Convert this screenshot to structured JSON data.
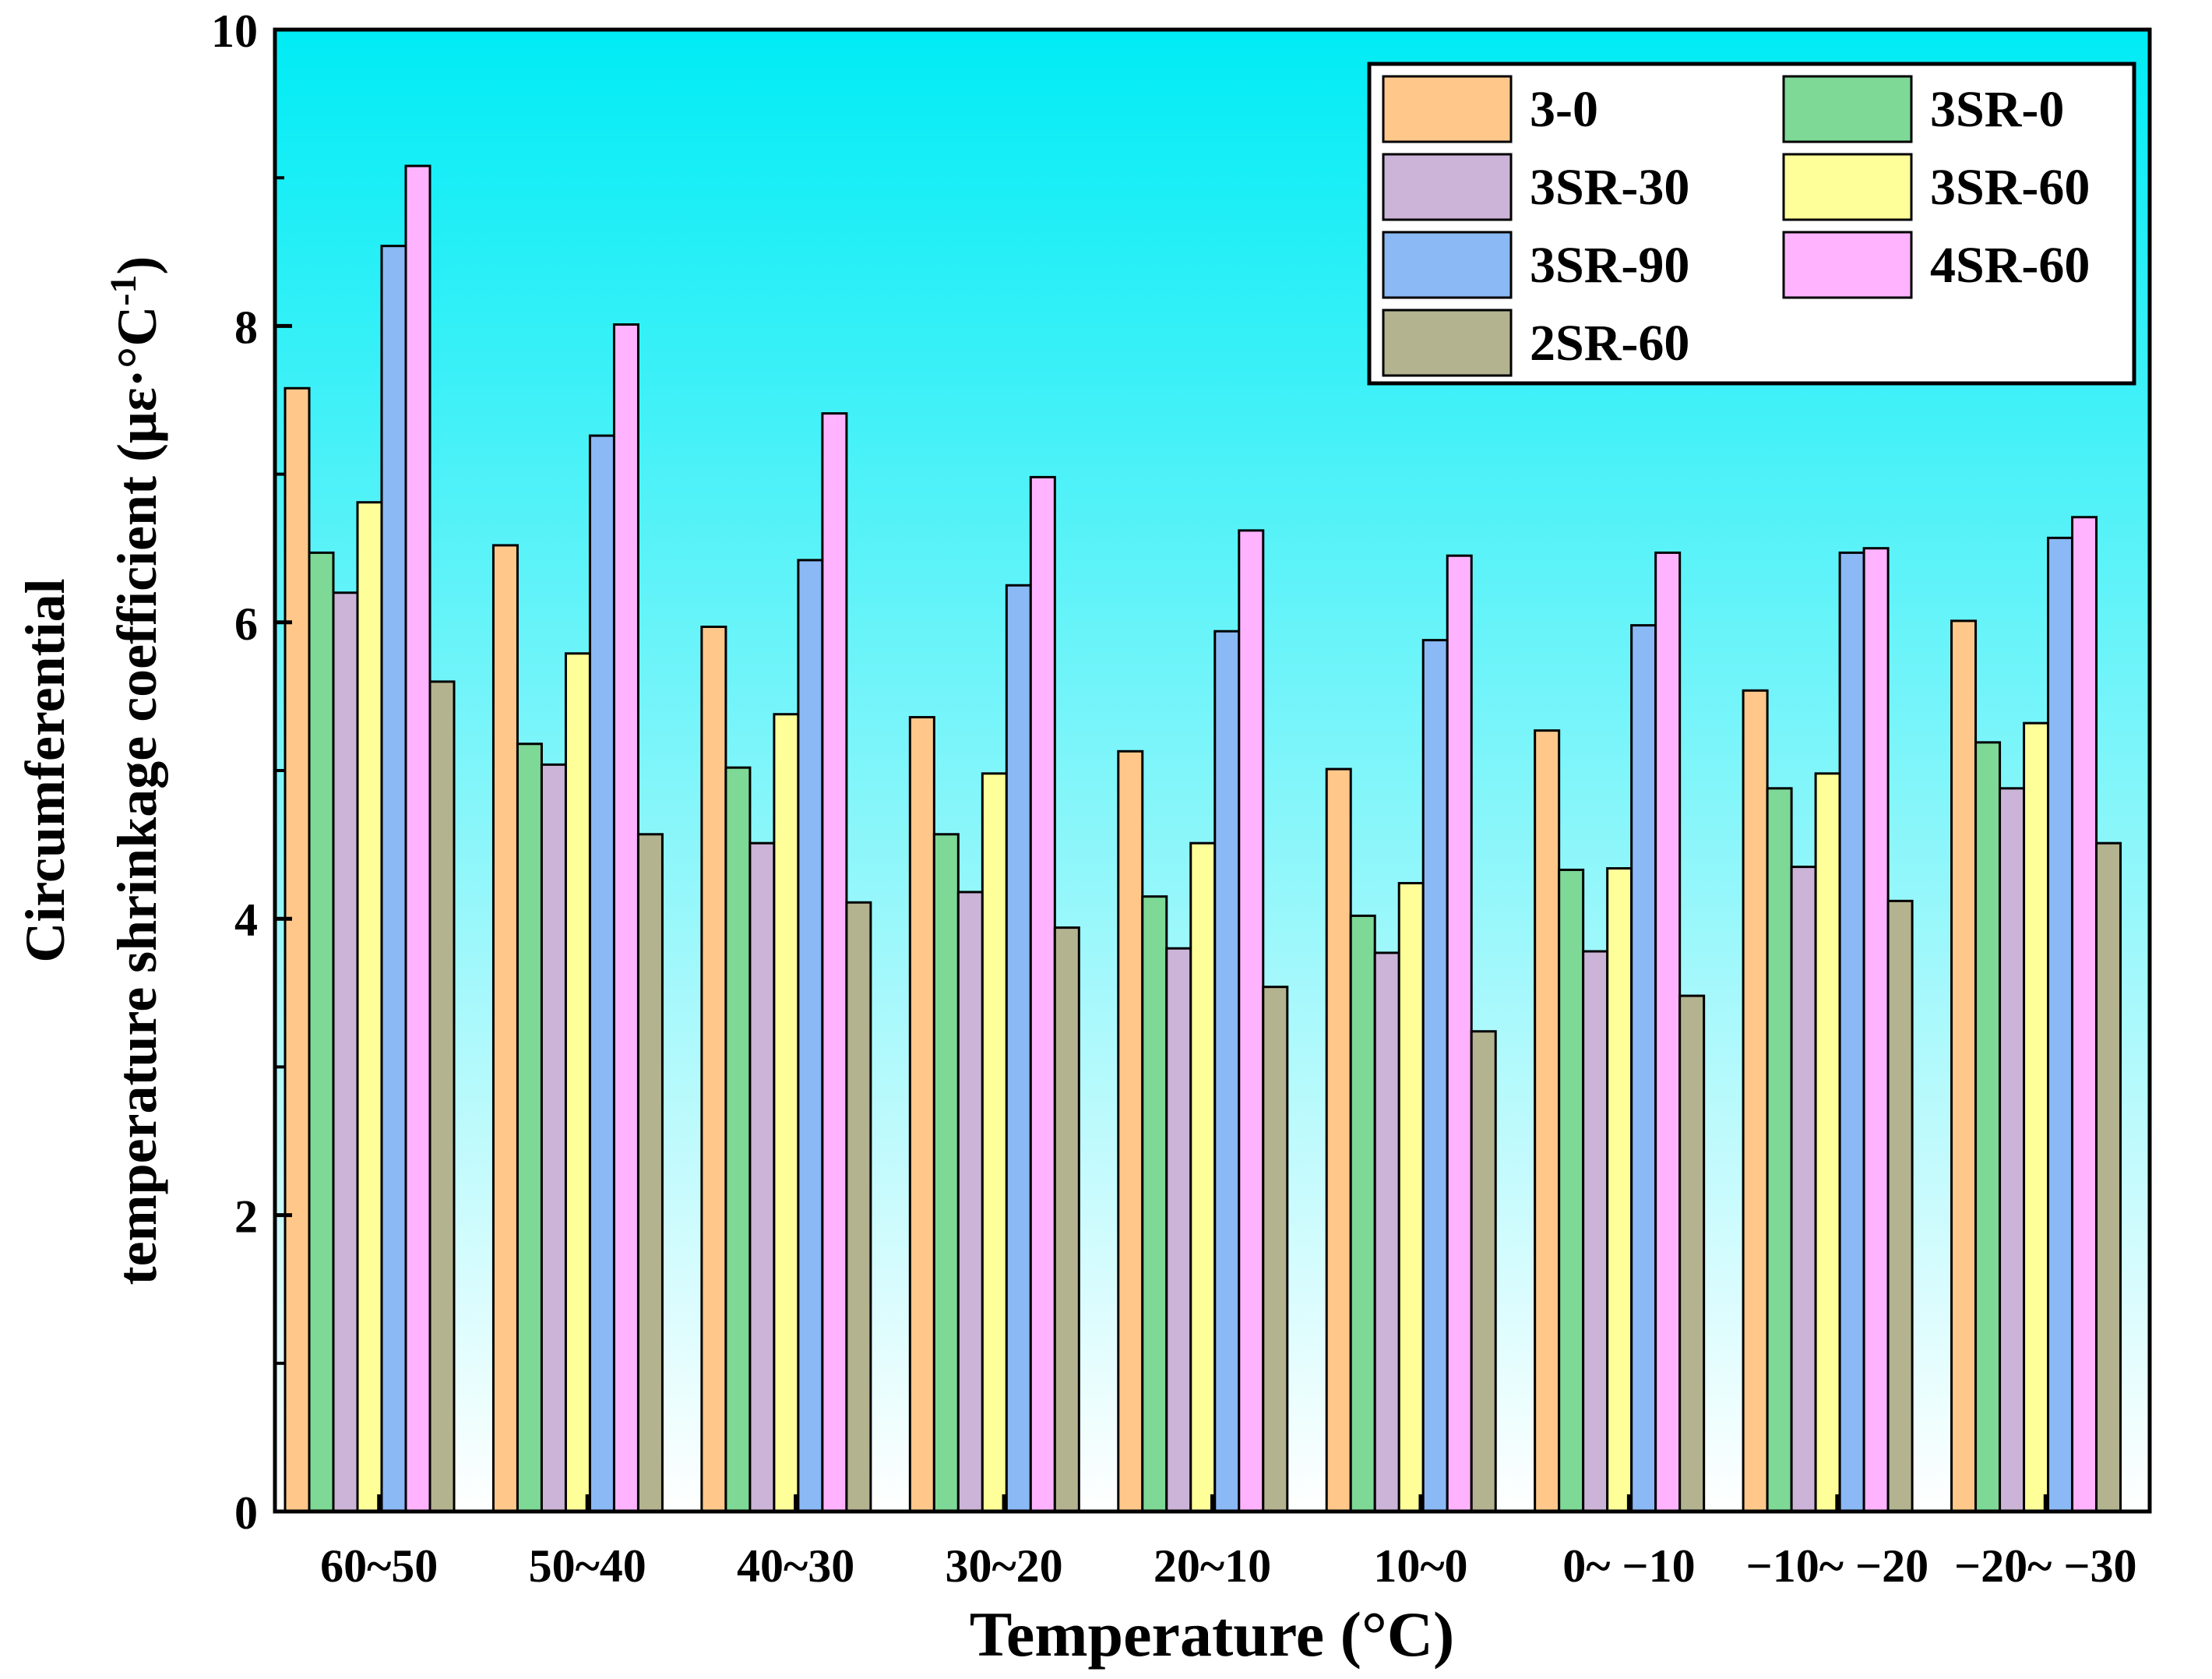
{
  "chart_data": {
    "type": "bar",
    "title": "",
    "xlabel": "Temperature (°C)",
    "ylabel_line1": "Circumferential",
    "ylabel_line2": "temperature shrinkage coefficient (με·°C",
    "ylabel_sup": "-1",
    "ylabel_close": ")",
    "ylim": [
      0,
      10
    ],
    "yticks": [
      "0",
      "2",
      "4",
      "6",
      "8",
      "10"
    ],
    "categories": [
      "60~50",
      "50~40",
      "40~30",
      "30~20",
      "20~10",
      "10~0",
      "0~ −10",
      "−10~ −20",
      "−20~ −30"
    ],
    "legend_position": "top-right",
    "background_gradient": [
      "#00ecf5",
      "#ffffff"
    ],
    "series": [
      {
        "name": "3-0",
        "color": "#ffc88a",
        "values": [
          7.58,
          6.52,
          5.97,
          5.36,
          5.13,
          5.01,
          5.27,
          5.54,
          6.01
        ]
      },
      {
        "name": "3SR-0",
        "color": "#7dd995",
        "values": [
          6.47,
          5.18,
          5.02,
          4.57,
          4.15,
          4.02,
          4.33,
          4.88,
          5.19
        ]
      },
      {
        "name": "3SR-30",
        "color": "#ccb4d8",
        "values": [
          6.2,
          5.04,
          4.51,
          4.18,
          3.8,
          3.77,
          3.78,
          4.35,
          4.88
        ]
      },
      {
        "name": "3SR-60",
        "color": "#ffff99",
        "values": [
          6.81,
          5.79,
          5.38,
          4.98,
          4.51,
          4.24,
          4.34,
          4.98,
          5.32
        ]
      },
      {
        "name": "3SR-90",
        "color": "#8ab9f5",
        "values": [
          8.54,
          7.26,
          6.42,
          6.25,
          5.94,
          5.88,
          5.98,
          6.47,
          6.57
        ]
      },
      {
        "name": "4SR-60",
        "color": "#ffb3ff",
        "values": [
          9.08,
          8.01,
          7.41,
          6.98,
          6.62,
          6.45,
          6.47,
          6.5,
          6.71
        ]
      },
      {
        "name": "2SR-60",
        "color": "#b3b38f",
        "values": [
          5.6,
          4.57,
          4.11,
          3.94,
          3.54,
          3.24,
          3.48,
          4.12,
          4.51
        ]
      }
    ]
  }
}
